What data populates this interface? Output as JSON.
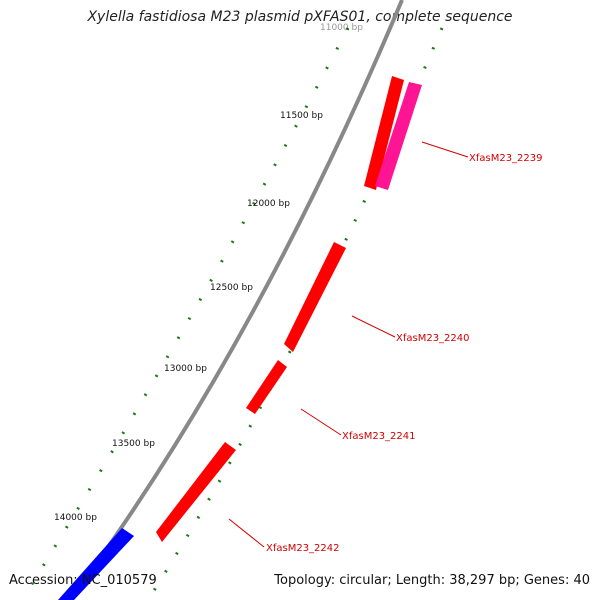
{
  "title": "Xylella fastidiosa M23 plasmid pXFAS01, complete sequence",
  "footer": {
    "accession": "Accession: NC_010579",
    "summary": "Topology: circular; Length: 38,297 bp; Genes: 40"
  },
  "ticks": [
    "11000 bp",
    "11500 bp",
    "12000 bp",
    "12500 bp",
    "13000 bp",
    "13500 bp",
    "14000 bp"
  ],
  "genes": [
    {
      "label": "XfasM23_2239",
      "color": "#ff0000"
    },
    {
      "label": "XfasM23_2240",
      "color": "#ff0000"
    },
    {
      "label": "XfasM23_2241",
      "color": "#ff0000"
    },
    {
      "label": "XfasM23_2242",
      "color": "#ff0000"
    }
  ],
  "colors": {
    "backbone": "#888888",
    "forward_gene": "#ff0000",
    "reverse_gene": "#ff1493",
    "other_gene": "#0000ff",
    "gc_track": "#1a7a1a",
    "label": "#d40000"
  }
}
